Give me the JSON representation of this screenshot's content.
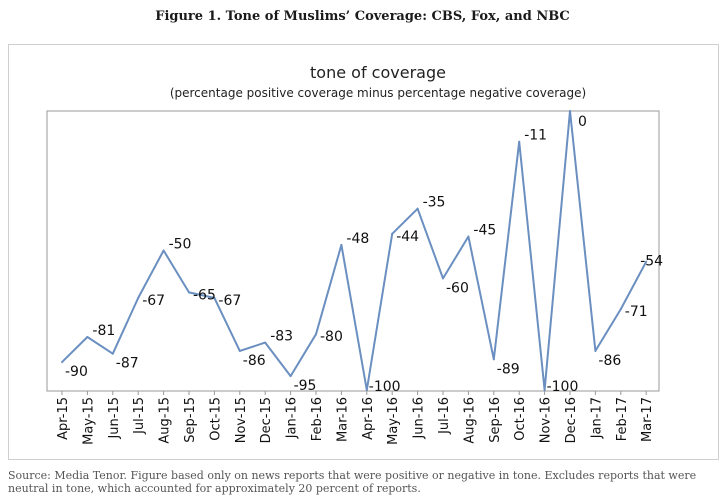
{
  "figure": {
    "title": "Figure 1. Tone of Muslims’ Coverage: CBS, Fox, and NBC",
    "source": "Source: Media Tenor. Figure based only on news reports that were positive or negative in tone. Excludes reports that were neutral in tone, which accounted for approximately 20 percent of reports."
  },
  "chart_data": {
    "type": "line",
    "title": "tone of coverage",
    "subtitle": "(percentage positive coverage minus percentage negative coverage)",
    "xlabel": "",
    "ylabel": "",
    "categories": [
      "Apr-15",
      "May-15",
      "Jun-15",
      "Jul-15",
      "Aug-15",
      "Sep-15",
      "Oct-15",
      "Nov-15",
      "Dec-15",
      "Jan-16",
      "Feb-16",
      "Mar-16",
      "Apr-16",
      "May-16",
      "Jun-16",
      "Jul-16",
      "Aug-16",
      "Sep-16",
      "Oct-16",
      "Nov-16",
      "Dec-16",
      "Jan-17",
      "Feb-17",
      "Mar-17"
    ],
    "series": [
      {
        "name": "tone",
        "color": "#6a8fc0",
        "values": [
          -90,
          -81,
          -87,
          -67,
          -50,
          -65,
          -67,
          -86,
          -83,
          -95,
          -80,
          -48,
          -100,
          -44,
          -35,
          -60,
          -45,
          -89,
          -11,
          -100,
          0,
          -86,
          -71,
          -54
        ]
      }
    ],
    "data_labels": [
      "-90",
      "-81",
      "-87",
      "-67",
      "-50",
      "-65",
      "-67",
      "-86",
      "-83",
      "-95",
      "-80",
      "-48",
      "-100",
      "-44",
      "-35",
      "-60",
      "-45",
      "-89",
      "-11",
      "-100",
      "0",
      "-86",
      "-71",
      "-54"
    ],
    "ylim": [
      -100,
      0
    ],
    "grid": false,
    "legend": "none"
  }
}
